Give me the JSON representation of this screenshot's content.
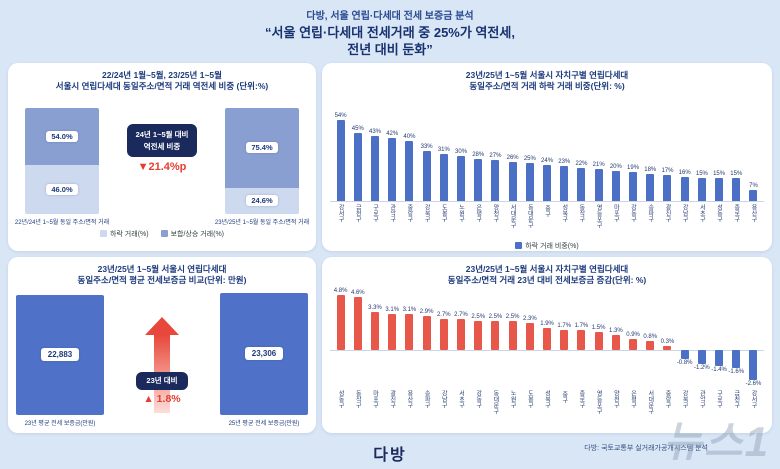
{
  "header": {
    "line1": "다방, 서울 연립·다세대 전세 보증금 분석",
    "line2": "“서울 연립·다세대 전세거래 중 25%가 역전세,",
    "line3": "전년 대비 둔화”"
  },
  "footer": {
    "logo": "다방",
    "watermark": "뉴스1",
    "source_note": "다방: 국토교통부 실거래가공개시스템 분석"
  },
  "colors": {
    "page_bg": "#d8e6f6",
    "navy_text": "#1d3a7c",
    "dark_box": "#1b2a5c",
    "red": "#e43e32",
    "bar_blue": "#4b70c6",
    "stack_light": "#cdd9ef",
    "stack_medium": "#8a9fd1"
  },
  "chart_data": [
    {
      "id": "reverse-jeonse-share",
      "type": "bar",
      "subtype": "stacked",
      "title_line1": "22/24년 1월~5월, 23/25년 1~5월",
      "title_line2": "서울시 연립다세대 동일주소/면적 거래 역전세 비중 (단위:%)",
      "categories": [
        "22년/24년 1~5월 동일 주소/면적 거래",
        "23년/25년 1~5월 동일 주소/면적 거래"
      ],
      "series": [
        {
          "name": "하락 거래(%)",
          "values": [
            46.0,
            24.6
          ],
          "color": "#cdd9ef"
        },
        {
          "name": "보합/상승 거래(%)",
          "values": [
            54.0,
            75.4
          ],
          "color": "#8a9fd1"
        }
      ],
      "ylim": [
        0,
        100
      ],
      "legend_position": "bottom",
      "annotation": {
        "line1": "24년 1~5월 대비",
        "line2": "역전세 비중",
        "delta": "▼21.4%p"
      }
    },
    {
      "id": "district-decline-share",
      "type": "bar",
      "title_line1": "23년/25년 1~5월 서울시 자치구별 연립다세대",
      "title_line2": "동일주소/면적 거래 하락 거래 비중(단위: %)",
      "legend": "하락 거래 비중(%)",
      "unit": "%",
      "ylim": [
        0,
        60
      ],
      "categories": [
        "강서구",
        "금천구",
        "구로구",
        "관악구",
        "중랑구",
        "강북구",
        "도봉구",
        "노원구",
        "은평구",
        "양천구",
        "서대문구",
        "동대문구",
        "중구",
        "성북구",
        "동작구",
        "영등포구",
        "마포구",
        "강동구",
        "송파구",
        "광진구",
        "강남구",
        "서초구",
        "성동구",
        "종로구",
        "용산구"
      ],
      "values": [
        54,
        45,
        43,
        42,
        40,
        33,
        31,
        30,
        28,
        27,
        26,
        25,
        24,
        23,
        22,
        21,
        20,
        19,
        18,
        17,
        16,
        15,
        15,
        15,
        7
      ]
    },
    {
      "id": "avg-deposit-compare",
      "type": "bar",
      "title_line1": "23년/25년 1~5월 서울시 연립다세대",
      "title_line2": "동일주소/면적 평균 전세보증금 비교(단위: 만원)",
      "categories": [
        "23년 평균 전세 보증금(만원)",
        "25년 평균 전세 보증금(만원)"
      ],
      "values": [
        22883,
        23306
      ],
      "value_labels": [
        "22,883",
        "23,306"
      ],
      "annotation": {
        "line1": "23년 대비",
        "delta": "▲ 1.8%"
      }
    },
    {
      "id": "district-deposit-change",
      "type": "bar",
      "title_line1": "23년/25년 1~5월 서울시 자치구별 연립다세대",
      "title_line2": "동일주소/면적 거래 23년 대비 전세보증금 증감(단위: %)",
      "unit": "%",
      "ylim": [
        -3,
        5
      ],
      "categories": [
        "성동구",
        "동작구",
        "마포구",
        "광진구",
        "용산구",
        "송파구",
        "강남구",
        "서초구",
        "강동구",
        "동대문구",
        "노원구",
        "도봉구",
        "성북구",
        "중구",
        "종로구",
        "영등포구",
        "양천구",
        "은평구",
        "서대문구",
        "중랑구",
        "강북구",
        "관악구",
        "구로구",
        "금천구",
        "강서구"
      ],
      "values": [
        4.8,
        4.6,
        3.3,
        3.1,
        3.1,
        2.9,
        2.7,
        2.7,
        2.5,
        2.5,
        2.5,
        2.3,
        1.9,
        1.7,
        1.7,
        1.5,
        1.3,
        0.9,
        0.8,
        0.3,
        -0.8,
        -1.2,
        -1.4,
        -1.6,
        -2.6
      ],
      "positive_color": "#e8584a",
      "negative_color": "#4b70c6"
    }
  ]
}
